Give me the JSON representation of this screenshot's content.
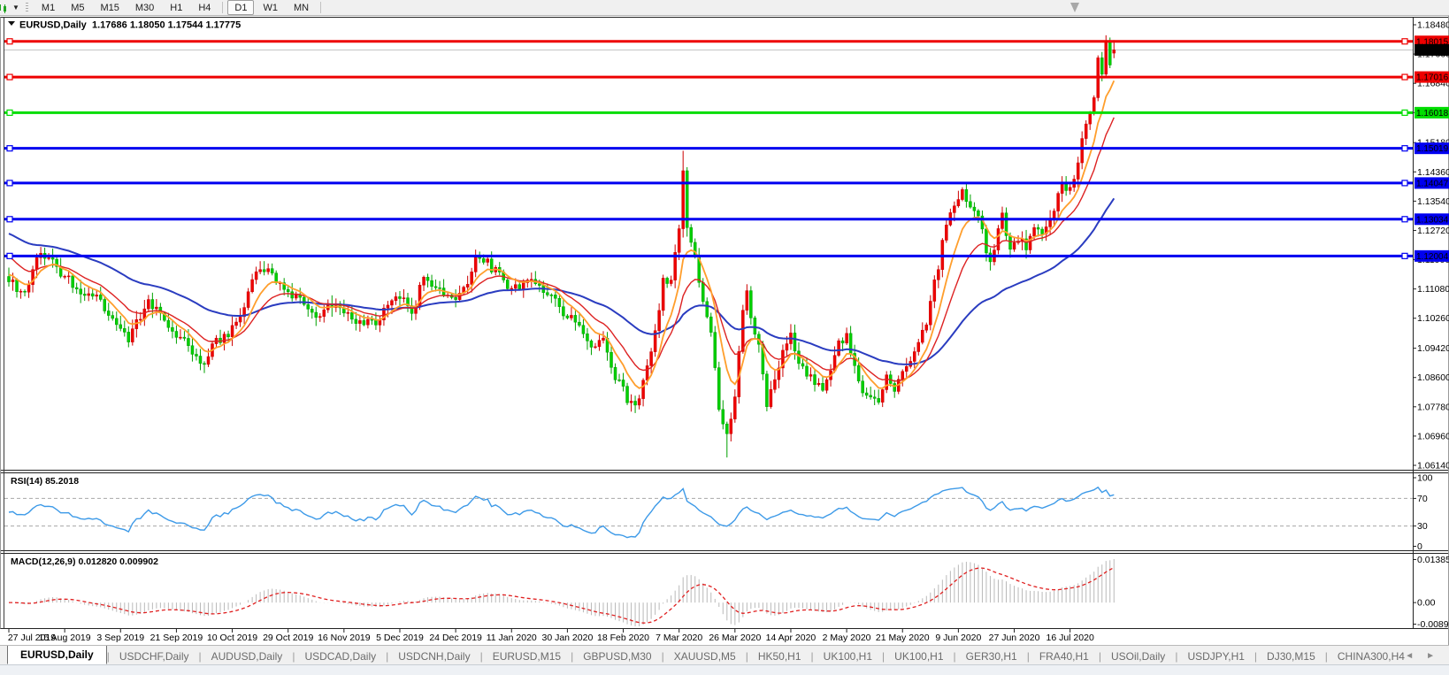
{
  "toolbar": {
    "chart_icon": "candlestick-chart-icon",
    "buttons": [
      "M1",
      "M5",
      "M15",
      "M30",
      "H1",
      "H4",
      "D1",
      "W1",
      "MN"
    ],
    "active_button": "D1"
  },
  "chart": {
    "title": {
      "symbol": "EURUSD,Daily",
      "ohlc": "1.17686 1.18050 1.17544 1.17775"
    },
    "current_price_label": "1.17775"
  },
  "rsi_panel": {
    "label": "RSI(14) 85.2018",
    "axis_labels": [
      "100",
      "70",
      "30",
      "0"
    ]
  },
  "macd_panel": {
    "label": "MACD(12,26,9) 0.012820 0.009902",
    "axis_labels": [
      "0.013858",
      "0.00",
      "-0.008968"
    ]
  },
  "colors": {
    "bull_fill": "#ee0000",
    "bull_stroke": "#cc0000",
    "bear_fill": "#00d000",
    "bear_stroke": "#00a000",
    "ma_fast": "#ff9e2c",
    "ma_mid": "#dd2222",
    "ma_slow": "#2a3cc0",
    "level_red": "#ee0000",
    "level_green": "#00dd00",
    "level_blue": "#0000f0",
    "current_price_line": "#c4c4c4",
    "current_price_box": "#000000",
    "rsi_line": "#3d9ae8",
    "rsi_dash": "#a8a8a8",
    "macd_hist": "#b9b9b9",
    "macd_signal": "#e02020",
    "border": "#222222"
  },
  "chart_data": {
    "type": "candlestick",
    "symbol": "EURUSD",
    "timeframe": "Daily",
    "bars_total": 278,
    "current_bar": {
      "open": 1.17686,
      "high": 1.1805,
      "low": 1.17544,
      "close": 1.17775
    },
    "price_axis_ticks": [
      "1.18480",
      "1.17660",
      "1.16840",
      "1.16020",
      "1.15180",
      "1.14360",
      "1.13540",
      "1.12720",
      "1.11900",
      "1.11080",
      "1.10260",
      "1.09420",
      "1.08600",
      "1.07780",
      "1.06960",
      "1.06140"
    ],
    "price_axis_range": {
      "max": 1.1848,
      "min": 1.0614,
      "tick_step": 0.0082
    },
    "levels": [
      {
        "value": 1.18015,
        "label": "1.18015",
        "color": "#ee0000"
      },
      {
        "value": 1.17016,
        "label": "1.17016",
        "color": "#ee0000"
      },
      {
        "value": 1.16018,
        "label": "1.16018",
        "color": "#00dd00"
      },
      {
        "value": 1.15019,
        "label": "1.15019",
        "color": "#0000f0"
      },
      {
        "value": 1.14047,
        "label": "1.14047",
        "color": "#0000f0"
      },
      {
        "value": 1.13034,
        "label": "1.13034",
        "color": "#0000f0"
      },
      {
        "value": 1.12004,
        "label": "1.12004",
        "color": "#0000f0"
      }
    ],
    "time_axis_labels": [
      "27 Jul 2019",
      "15 Aug 2019",
      "3 Sep 2019",
      "21 Sep 2019",
      "10 Oct 2019",
      "29 Oct 2019",
      "16 Nov 2019",
      "5 Dec 2019",
      "24 Dec 2019",
      "11 Jan 2020",
      "30 Jan 2020",
      "18 Feb 2020",
      "7 Mar 2020",
      "26 Mar 2020",
      "14 Apr 2020",
      "2 May 2020",
      "21 May 2020",
      "9 Jun 2020",
      "27 Jun 2020",
      "16 Jul 2020"
    ],
    "bars_per_time_label": 14,
    "close_anchors": [
      [
        0,
        1.1128
      ],
      [
        4,
        1.109
      ],
      [
        7,
        1.12
      ],
      [
        10,
        1.1185
      ],
      [
        14,
        1.115
      ],
      [
        18,
        1.1095
      ],
      [
        22,
        1.1085
      ],
      [
        26,
        1.102
      ],
      [
        28,
        1.099
      ],
      [
        30,
        1.097
      ],
      [
        33,
        1.1035
      ],
      [
        35,
        1.107
      ],
      [
        38,
        1.104
      ],
      [
        41,
        1.099
      ],
      [
        44,
        1.096
      ],
      [
        47,
        1.092
      ],
      [
        49,
        1.09
      ],
      [
        52,
        1.096
      ],
      [
        55,
        1.0985
      ],
      [
        58,
        1.104
      ],
      [
        62,
        1.115
      ],
      [
        65,
        1.1165
      ],
      [
        68,
        1.112
      ],
      [
        72,
        1.108
      ],
      [
        77,
        1.103
      ],
      [
        80,
        1.107
      ],
      [
        84,
        1.105
      ],
      [
        88,
        1.101
      ],
      [
        92,
        1.102
      ],
      [
        95,
        1.106
      ],
      [
        98,
        1.108
      ],
      [
        101,
        1.105
      ],
      [
        104,
        1.113
      ],
      [
        107,
        1.1115
      ],
      [
        110,
        1.108
      ],
      [
        113,
        1.109
      ],
      [
        115,
        1.112
      ],
      [
        117,
        1.121
      ],
      [
        119,
        1.119
      ],
      [
        122,
        1.116
      ],
      [
        125,
        1.112
      ],
      [
        128,
        1.1105
      ],
      [
        131,
        1.114
      ],
      [
        134,
        1.11
      ],
      [
        137,
        1.108
      ],
      [
        140,
        1.103
      ],
      [
        143,
        1.1
      ],
      [
        146,
        1.0945
      ],
      [
        149,
        1.0965
      ],
      [
        152,
        1.086
      ],
      [
        156,
        1.079
      ],
      [
        158,
        1.08
      ],
      [
        160,
        1.088
      ],
      [
        162,
        1.098
      ],
      [
        164,
        1.113
      ],
      [
        166,
        1.114
      ],
      [
        168,
        1.128
      ],
      [
        169,
        1.145
      ],
      [
        170,
        1.128
      ],
      [
        172,
        1.1185
      ],
      [
        174,
        1.106
      ],
      [
        176,
        1.0995
      ],
      [
        178,
        1.078
      ],
      [
        180,
        1.07
      ],
      [
        182,
        1.08
      ],
      [
        184,
        1.105
      ],
      [
        185,
        1.11
      ],
      [
        186,
        1.103
      ],
      [
        188,
        1.095
      ],
      [
        190,
        1.079
      ],
      [
        192,
        1.086
      ],
      [
        194,
        1.093
      ],
      [
        196,
        1.098
      ],
      [
        198,
        1.09
      ],
      [
        200,
        1.087
      ],
      [
        202,
        1.085
      ],
      [
        204,
        1.082
      ],
      [
        206,
        1.088
      ],
      [
        208,
        1.0955
      ],
      [
        210,
        1.098
      ],
      [
        212,
        1.09
      ],
      [
        214,
        1.082
      ],
      [
        216,
        1.081
      ],
      [
        218,
        1.08
      ],
      [
        220,
        1.086
      ],
      [
        222,
        1.082
      ],
      [
        224,
        1.087
      ],
      [
        226,
        1.09
      ],
      [
        228,
        1.095
      ],
      [
        230,
        1.101
      ],
      [
        232,
        1.1134
      ],
      [
        235,
        1.129
      ],
      [
        238,
        1.137
      ],
      [
        239,
        1.139
      ],
      [
        241,
        1.134
      ],
      [
        243,
        1.13
      ],
      [
        246,
        1.118
      ],
      [
        249,
        1.131
      ],
      [
        251,
        1.1218
      ],
      [
        253,
        1.125
      ],
      [
        255,
        1.123
      ],
      [
        257,
        1.127
      ],
      [
        259,
        1.126
      ],
      [
        261,
        1.13
      ],
      [
        264,
        1.14
      ],
      [
        266,
        1.1385
      ],
      [
        268,
        1.147
      ],
      [
        270,
        1.157
      ],
      [
        272,
        1.1656
      ],
      [
        273,
        1.175
      ],
      [
        274,
        1.1716
      ],
      [
        275,
        1.179
      ],
      [
        276,
        1.1746
      ],
      [
        277,
        1.17775
      ]
    ],
    "spike_high": {
      "index": 169,
      "price": 1.1495
    },
    "crash_low": {
      "index": 180,
      "price": 1.0636
    },
    "indicators": {
      "moving_averages": [
        {
          "period": 8,
          "color_key": "ma_fast"
        },
        {
          "period": 16,
          "color_key": "ma_mid"
        },
        {
          "period": 50,
          "color_key": "ma_slow"
        }
      ],
      "rsi": {
        "period": 14,
        "current": 85.2018,
        "guide_levels": [
          70,
          30
        ],
        "scale": [
          0,
          100
        ]
      },
      "macd": {
        "fast": 12,
        "slow": 26,
        "signal": 9,
        "current_macd": 0.01282,
        "current_signal": 0.009902,
        "axis_max": 0.013858,
        "axis_min": -0.008968
      }
    }
  },
  "tabs": {
    "active": "EURUSD,Daily",
    "items": [
      "EURUSD,Daily",
      "USDCHF,Daily",
      "AUDUSD,Daily",
      "USDCAD,Daily",
      "USDCNH,Daily",
      "EURUSD,M15",
      "GBPUSD,M30",
      "XAUUSD,M5",
      "HK50,H1",
      "UK100,H1",
      "UK100,H1",
      "GER30,H1",
      "FRA40,H1",
      "USOil,Daily",
      "USDJPY,H1",
      "DJ30,M15",
      "CHINA300,H4"
    ]
  }
}
